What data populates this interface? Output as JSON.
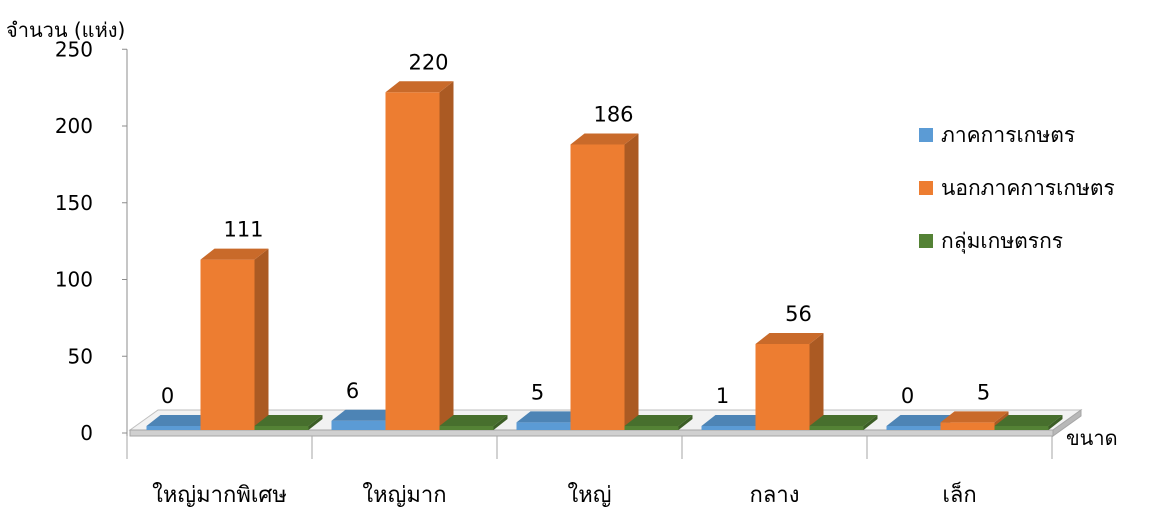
{
  "chart_data": {
    "type": "bar",
    "ylabel": "จำนวน (แห่ง)",
    "xlabel": "ขนาด",
    "ylim": [
      0,
      250
    ],
    "yticks": [
      0,
      50,
      100,
      150,
      200,
      250
    ],
    "categories": [
      "ใหญ่มากพิเศษ",
      "ใหญ่มาก",
      "ใหญ่",
      "กลาง",
      "เล็ก"
    ],
    "series": [
      {
        "name": "ภาคการเกษตร",
        "values": [
          0,
          6,
          5,
          1,
          0
        ],
        "color": "#5b9bd5",
        "show_labels": true
      },
      {
        "name": "นอกภาคการเกษตร",
        "values": [
          111,
          220,
          186,
          56,
          5
        ],
        "color": "#ed7d31",
        "show_labels": true
      },
      {
        "name": "กลุ่มเกษตรกร",
        "values": [
          0,
          0,
          0,
          0,
          0
        ],
        "color": "#548235",
        "show_labels": false
      }
    ],
    "legend_position": "right",
    "style": "3d-column"
  }
}
